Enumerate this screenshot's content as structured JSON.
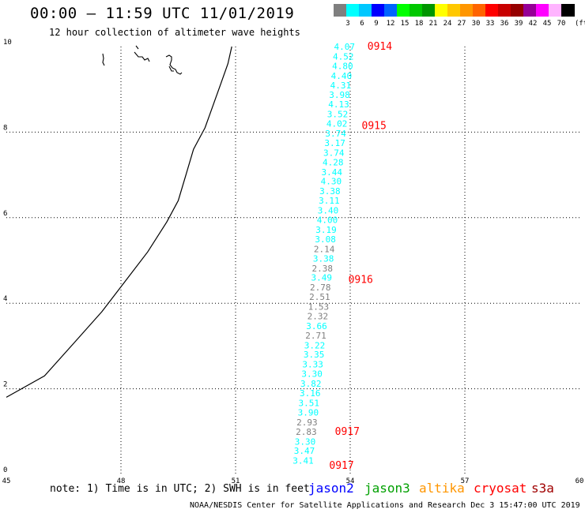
{
  "title": "00:00 – 11:59 UTC 11/01/2019",
  "subtitle": "12 hour collection of altimeter wave heights",
  "legend": {
    "colors": [
      "#7f7f7f",
      "#00ffff",
      "#00c8ff",
      "#0000ff",
      "#0064ff",
      "#00ff00",
      "#00c800",
      "#009600",
      "#ffff00",
      "#ffc800",
      "#ff9600",
      "#ff6400",
      "#ff0000",
      "#c80000",
      "#960000",
      "#960096",
      "#ff00ff",
      "#ffb4ff",
      "#000000"
    ],
    "labels": [
      "3",
      "6",
      "9",
      "12",
      "15",
      "18",
      "21",
      "24",
      "27",
      "30",
      "33",
      "36",
      "39",
      "42",
      "45",
      "70"
    ],
    "unit": "(ft)"
  },
  "axes": {
    "x_ticks": [
      "45",
      "48",
      "51",
      "54",
      "57",
      "60"
    ],
    "y_ticks": [
      "10",
      "8",
      "6",
      "4",
      "2",
      "0"
    ]
  },
  "map_data": {
    "x_range": [
      45,
      60
    ],
    "y_range": [
      0,
      10
    ],
    "coastline": [
      [
        50.9,
        10.0
      ],
      [
        50.8,
        9.6
      ],
      [
        50.6,
        9.1
      ],
      [
        50.4,
        8.6
      ],
      [
        50.2,
        8.1
      ],
      [
        49.9,
        7.6
      ],
      [
        49.7,
        7.0
      ],
      [
        49.5,
        6.4
      ],
      [
        49.2,
        5.9
      ],
      [
        48.7,
        5.2
      ],
      [
        48.1,
        4.5
      ],
      [
        47.5,
        3.8
      ],
      [
        46.8,
        3.1
      ],
      [
        46.0,
        2.3
      ],
      [
        45.0,
        1.8
      ]
    ],
    "track_labels": [
      {
        "text": "0914",
        "lon": 54.45,
        "lat": 10.0
      },
      {
        "text": "0915",
        "lon": 54.3,
        "lat": 8.15
      },
      {
        "text": "0916",
        "lon": 53.95,
        "lat": 4.55
      },
      {
        "text": "0917",
        "lon": 53.6,
        "lat": 1.0
      },
      {
        "text": "0917",
        "lon": 53.45,
        "lat": 0.2
      }
    ],
    "track_color": "#ff0000",
    "measurements": [
      {
        "v": "4.07",
        "lon": 53.85,
        "lat": 10.0,
        "c": "#00ffff"
      },
      {
        "v": "4.52",
        "lon": 53.82,
        "lat": 9.77,
        "c": "#00ffff"
      },
      {
        "v": "4.80",
        "lon": 53.8,
        "lat": 9.55,
        "c": "#00ffff"
      },
      {
        "v": "4.40",
        "lon": 53.77,
        "lat": 9.32,
        "c": "#00ffff"
      },
      {
        "v": "4.31",
        "lon": 53.75,
        "lat": 9.1,
        "c": "#00ffff"
      },
      {
        "v": "3.98",
        "lon": 53.72,
        "lat": 8.87,
        "c": "#00ffff"
      },
      {
        "v": "4.13",
        "lon": 53.7,
        "lat": 8.65,
        "c": "#00ffff"
      },
      {
        "v": "3.52",
        "lon": 53.67,
        "lat": 8.42,
        "c": "#00ffff"
      },
      {
        "v": "4.02",
        "lon": 53.65,
        "lat": 8.2,
        "c": "#00ffff"
      },
      {
        "v": "3.74",
        "lon": 53.62,
        "lat": 7.97,
        "c": "#00ffff"
      },
      {
        "v": "3.17",
        "lon": 53.6,
        "lat": 7.75,
        "c": "#00ffff"
      },
      {
        "v": "3.74",
        "lon": 53.57,
        "lat": 7.52,
        "c": "#00ffff"
      },
      {
        "v": "4.28",
        "lon": 53.55,
        "lat": 7.3,
        "c": "#00ffff"
      },
      {
        "v": "3.44",
        "lon": 53.52,
        "lat": 7.07,
        "c": "#00ffff"
      },
      {
        "v": "4.30",
        "lon": 53.5,
        "lat": 6.85,
        "c": "#00ffff"
      },
      {
        "v": "3.38",
        "lon": 53.47,
        "lat": 6.62,
        "c": "#00ffff"
      },
      {
        "v": "3.11",
        "lon": 53.45,
        "lat": 6.4,
        "c": "#00ffff"
      },
      {
        "v": "3.40",
        "lon": 53.42,
        "lat": 6.17,
        "c": "#00ffff"
      },
      {
        "v": "4.00",
        "lon": 53.4,
        "lat": 5.95,
        "c": "#00ffff"
      },
      {
        "v": "3.19",
        "lon": 53.37,
        "lat": 5.72,
        "c": "#00ffff"
      },
      {
        "v": "3.08",
        "lon": 53.35,
        "lat": 5.5,
        "c": "#00ffff"
      },
      {
        "v": "2.14",
        "lon": 53.32,
        "lat": 5.27,
        "c": "#7f7f7f"
      },
      {
        "v": "3.38",
        "lon": 53.3,
        "lat": 5.05,
        "c": "#00ffff"
      },
      {
        "v": "2.38",
        "lon": 53.27,
        "lat": 4.82,
        "c": "#7f7f7f"
      },
      {
        "v": "3.49",
        "lon": 53.25,
        "lat": 4.6,
        "c": "#00ffff"
      },
      {
        "v": "2.78",
        "lon": 53.22,
        "lat": 4.37,
        "c": "#7f7f7f"
      },
      {
        "v": "2.51",
        "lon": 53.2,
        "lat": 4.15,
        "c": "#7f7f7f"
      },
      {
        "v": "1.53",
        "lon": 53.17,
        "lat": 3.92,
        "c": "#7f7f7f"
      },
      {
        "v": "2.32",
        "lon": 53.15,
        "lat": 3.7,
        "c": "#7f7f7f"
      },
      {
        "v": "3.66",
        "lon": 53.12,
        "lat": 3.47,
        "c": "#00ffff"
      },
      {
        "v": "2.71",
        "lon": 53.1,
        "lat": 3.25,
        "c": "#7f7f7f"
      },
      {
        "v": "3.22",
        "lon": 53.07,
        "lat": 3.02,
        "c": "#00ffff"
      },
      {
        "v": "3.35",
        "lon": 53.05,
        "lat": 2.8,
        "c": "#00ffff"
      },
      {
        "v": "3.33",
        "lon": 53.02,
        "lat": 2.57,
        "c": "#00ffff"
      },
      {
        "v": "3.30",
        "lon": 53.0,
        "lat": 2.35,
        "c": "#00ffff"
      },
      {
        "v": "3.82",
        "lon": 52.97,
        "lat": 2.12,
        "c": "#00ffff"
      },
      {
        "v": "3.16",
        "lon": 52.95,
        "lat": 1.9,
        "c": "#00ffff"
      },
      {
        "v": "3.51",
        "lon": 52.92,
        "lat": 1.67,
        "c": "#00ffff"
      },
      {
        "v": "3.90",
        "lon": 52.9,
        "lat": 1.45,
        "c": "#00ffff"
      },
      {
        "v": "2.93",
        "lon": 52.87,
        "lat": 1.22,
        "c": "#7f7f7f"
      },
      {
        "v": "2.83",
        "lon": 52.85,
        "lat": 1.0,
        "c": "#7f7f7f"
      },
      {
        "v": "3.30",
        "lon": 52.82,
        "lat": 0.77,
        "c": "#00ffff"
      },
      {
        "v": "3.47",
        "lon": 52.8,
        "lat": 0.55,
        "c": "#00ffff"
      },
      {
        "v": "3.41",
        "lon": 52.77,
        "lat": 0.32,
        "c": "#00ffff"
      }
    ]
  },
  "note": "note: 1) Time is in UTC; 2) SWH is in feet",
  "satellites": [
    {
      "name": "jason2",
      "color": "#0000ff"
    },
    {
      "name": "jason3",
      "color": "#00a000"
    },
    {
      "name": "altika",
      "color": "#ff9600"
    },
    {
      "name": "cryosat",
      "color": "#ff0000"
    },
    {
      "name": "s3a",
      "color": "#a00000"
    }
  ],
  "footer": "NOAA/NESDIS Center for Satellite Applications and Research   Dec  3 15:47:00 UTC 2019"
}
